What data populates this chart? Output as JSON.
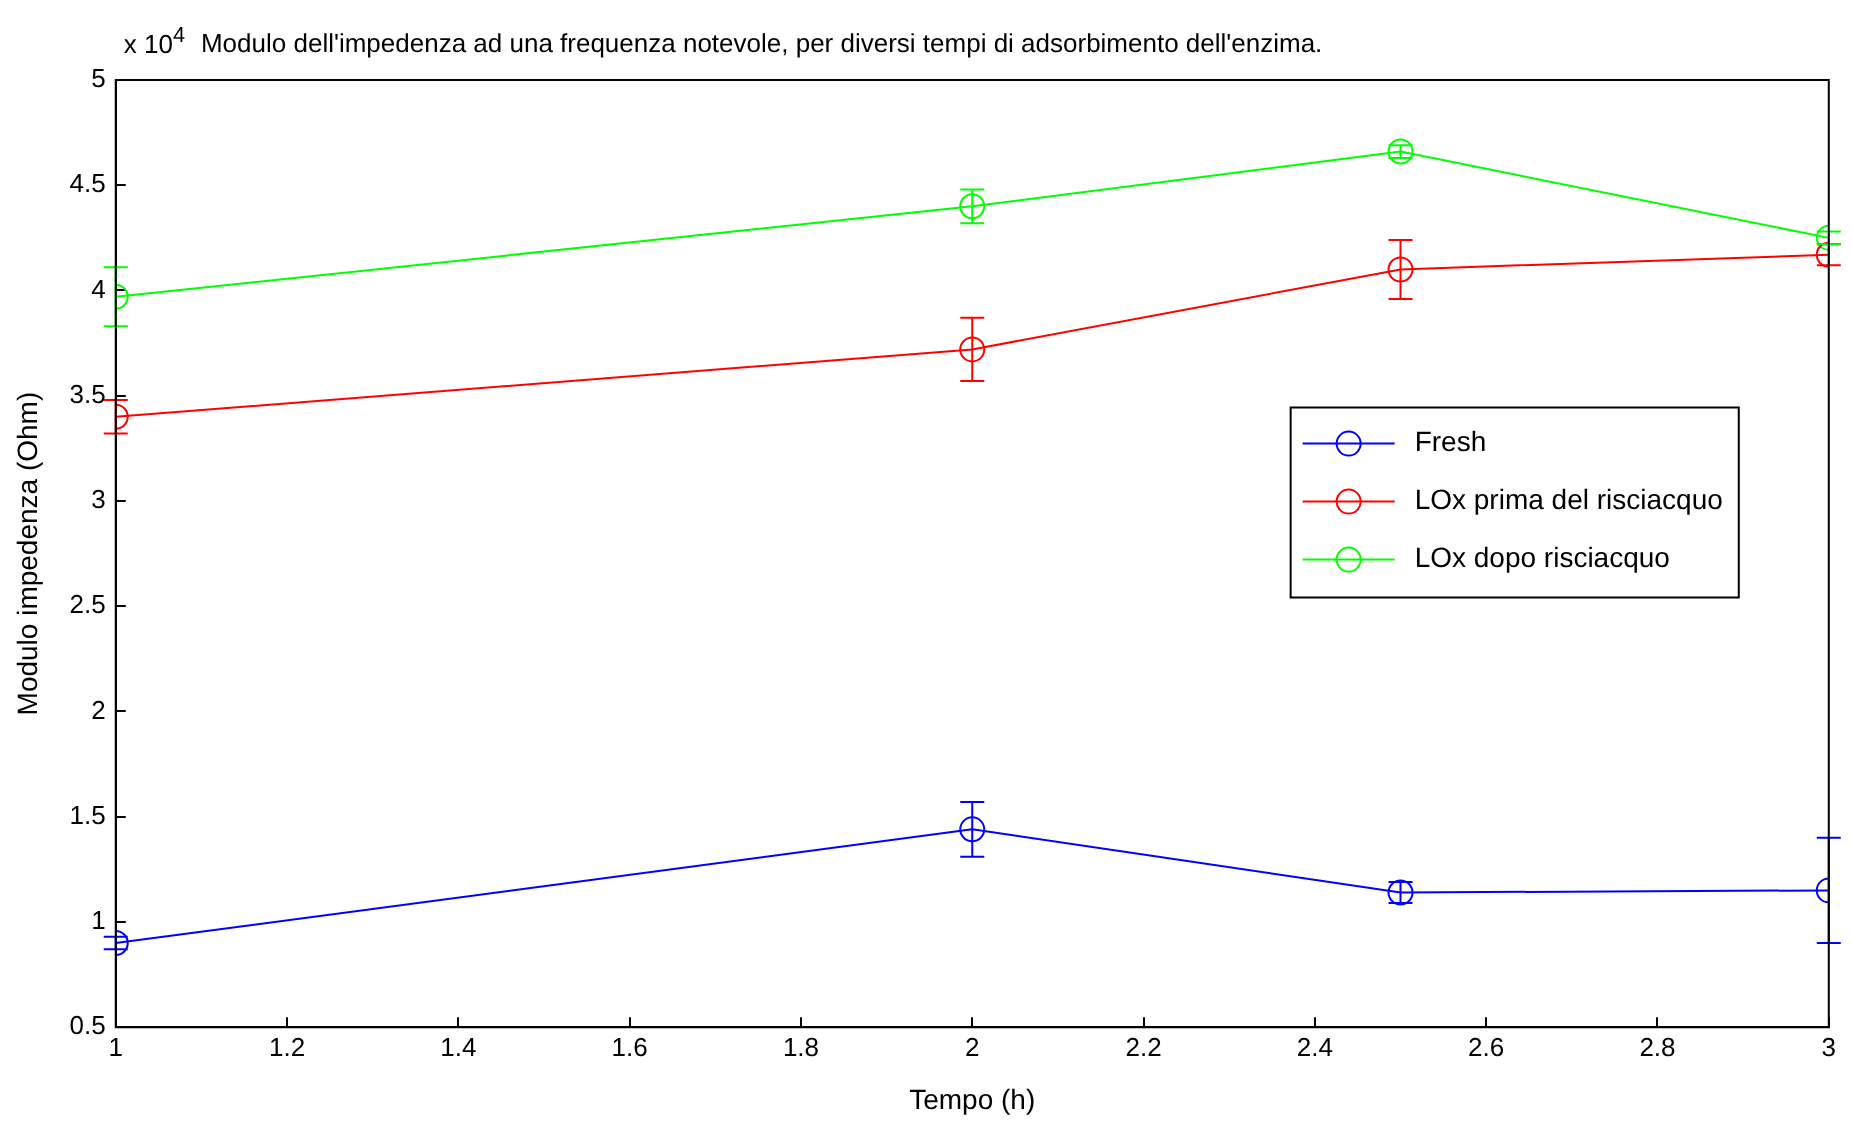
{
  "chart_data": {
    "type": "line",
    "title": "Modulo dell'impedenza ad una frequenza notevole, per diversi tempi di adsorbimento dell'enzima.",
    "xlabel": "Tempo (h)",
    "ylabel": "Modulo impedenza (Ohm)",
    "annotations": [
      "x 10$^{4}$"
    ],
    "x": [
      1,
      2,
      2.5,
      3
    ],
    "xlim": [
      1,
      3
    ],
    "xticks": [
      1,
      1.2,
      1.4,
      1.6,
      1.8,
      2,
      2.2,
      2.4,
      2.6,
      2.8,
      3
    ],
    "ylim": [
      0.5,
      5
    ],
    "yticks": [
      0.5,
      1,
      1.5,
      2,
      2.5,
      3,
      3.5,
      4,
      4.5,
      5
    ],
    "grid": false,
    "legend": "right",
    "marker": "circle",
    "line_style": "solid",
    "series": [
      {
        "name": "Fresh",
        "color": "#0000ff",
        "values": [
          0.9,
          1.44,
          1.14,
          1.15
        ],
        "errors": [
          0.03,
          0.13,
          0.05,
          0.25
        ]
      },
      {
        "name": "LOx prima del risciacquo",
        "color": "#ff0000",
        "values": [
          3.4,
          3.72,
          4.1,
          4.17
        ],
        "errors": [
          0.08,
          0.15,
          0.14,
          0.05
        ]
      },
      {
        "name": "LOx dopo risciacquo",
        "color": "#00ff00",
        "values": [
          3.97,
          4.4,
          4.66,
          4.25
        ],
        "errors": [
          0.14,
          0.08,
          0.03,
          0.03
        ]
      }
    ]
  }
}
